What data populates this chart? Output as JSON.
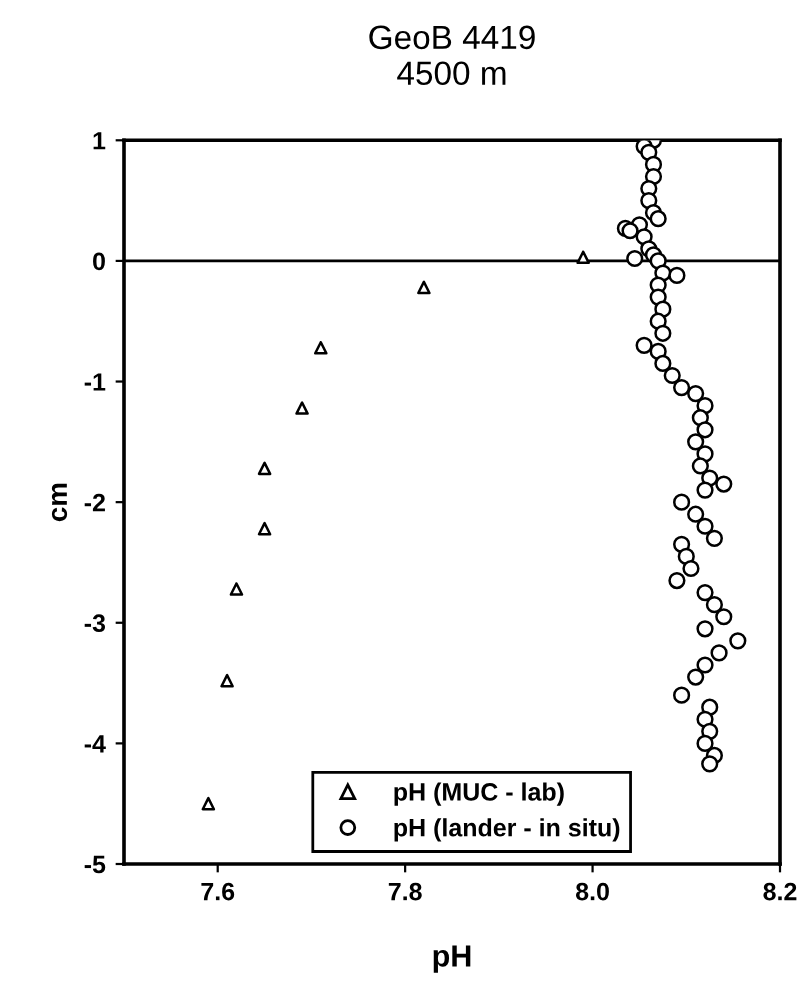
{
  "chart_data": {
    "type": "scatter",
    "title": "GeoB 4419\n4500 m",
    "xlabel": "pH",
    "ylabel": "cm",
    "xlim": [
      7.5,
      8.2
    ],
    "xticks": [
      7.6,
      7.8,
      {
        "value": 8.0,
        "label": "8.0"
      },
      8.2
    ],
    "ylim": [
      -5,
      1
    ],
    "yticks": [
      -5,
      -4,
      -3,
      -2,
      -1,
      0,
      1
    ],
    "grid": false,
    "legend": "bottom",
    "tick_labels": true,
    "ref_lines": [
      {
        "axis": "y",
        "value": 0,
        "color": "#000000"
      }
    ],
    "series": [
      {
        "name": "pH (MUC - lab)",
        "color": "#000000",
        "marker": "triangle",
        "x": [
          7.99,
          7.82,
          7.71,
          7.69,
          7.65,
          7.65,
          7.62,
          7.61,
          7.59
        ],
        "values": [
          0.03,
          -0.22,
          -0.72,
          -1.22,
          -1.72,
          -2.22,
          -2.72,
          -3.48,
          -4.5
        ]
      },
      {
        "name": "pH (lander - in situ)",
        "color": "#000000",
        "marker": "circle",
        "x": [
          8.065,
          8.055,
          8.06,
          8.065,
          8.065,
          8.06,
          8.06,
          8.065,
          8.07,
          8.05,
          8.035,
          8.04,
          8.055,
          8.06,
          8.065,
          8.045,
          8.07,
          8.075,
          8.09,
          8.07,
          8.07,
          8.075,
          8.07,
          8.075,
          8.055,
          8.07,
          8.075,
          8.085,
          8.095,
          8.11,
          8.12,
          8.115,
          8.12,
          8.11,
          8.12,
          8.115,
          8.125,
          8.14,
          8.12,
          8.095,
          8.11,
          8.12,
          8.13,
          8.095,
          8.1,
          8.105,
          8.09,
          8.12,
          8.13,
          8.14,
          8.12,
          8.155,
          8.135,
          8.12,
          8.11,
          8.095,
          8.125,
          8.12,
          8.125,
          8.12,
          8.13,
          8.125
        ],
        "values": [
          1.0,
          0.95,
          0.9,
          0.8,
          0.7,
          0.6,
          0.5,
          0.4,
          0.35,
          0.3,
          0.27,
          0.25,
          0.2,
          0.1,
          0.05,
          0.02,
          0.0,
          -0.1,
          -0.12,
          -0.2,
          -0.3,
          -0.4,
          -0.5,
          -0.6,
          -0.7,
          -0.75,
          -0.85,
          -0.95,
          -1.05,
          -1.1,
          -1.2,
          -1.3,
          -1.4,
          -1.5,
          -1.6,
          -1.7,
          -1.8,
          -1.85,
          -1.9,
          -2.0,
          -2.1,
          -2.2,
          -2.3,
          -2.35,
          -2.45,
          -2.55,
          -2.65,
          -2.75,
          -2.85,
          -2.95,
          -3.05,
          -3.15,
          -3.25,
          -3.35,
          -3.45,
          -3.6,
          -3.7,
          -3.8,
          -3.9,
          -4.0,
          -4.1,
          -4.17
        ]
      }
    ]
  }
}
